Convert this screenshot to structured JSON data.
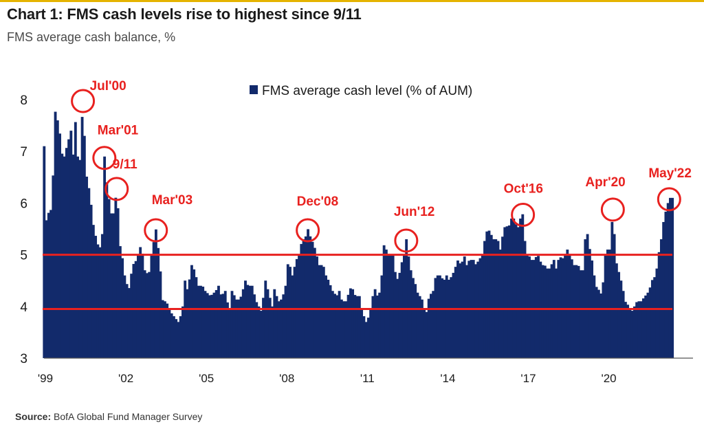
{
  "title": "Chart 1: FMS cash levels rise to highest since 9/11",
  "subtitle": "FMS average cash balance, %",
  "source_label": "Source:",
  "source_text": "BofA Global Fund Manager Survey",
  "colors": {
    "bar": "#122a6b",
    "annotation": "#e8211f",
    "accent": "#e5b300"
  },
  "chart_data": {
    "type": "bar",
    "legend": {
      "label": "FMS average cash level (% of AUM)",
      "position": "top-center"
    },
    "y": {
      "min": 3,
      "max": 8.3,
      "ticks": [
        3,
        4,
        5,
        6,
        7,
        8
      ]
    },
    "x": {
      "start_year": 1999,
      "end_year": 2022.42,
      "tick_years": [
        1999,
        2002,
        2005,
        2008,
        2011,
        2014,
        2017,
        2020
      ],
      "tick_labels": [
        "'99",
        "'02",
        "'05",
        "'08",
        "'11",
        "'14",
        "'17",
        "'20"
      ]
    },
    "reference_lines": [
      5.0,
      3.95
    ],
    "anchors": [
      [
        1999.0,
        7.1
      ],
      [
        1999.05,
        5.6
      ],
      [
        1999.15,
        5.8
      ],
      [
        1999.3,
        5.9
      ],
      [
        1999.4,
        7.8
      ],
      [
        1999.55,
        7.5
      ],
      [
        1999.7,
        6.8
      ],
      [
        1999.85,
        7.1
      ],
      [
        2000.0,
        7.4
      ],
      [
        2000.08,
        6.9
      ],
      [
        2000.15,
        7.7
      ],
      [
        2000.3,
        6.5
      ],
      [
        2000.45,
        8.0
      ],
      [
        2000.55,
        6.6
      ],
      [
        2000.7,
        6.2
      ],
      [
        2000.85,
        5.5
      ],
      [
        2001.0,
        5.2
      ],
      [
        2001.15,
        5.1
      ],
      [
        2001.25,
        6.9
      ],
      [
        2001.35,
        6.3
      ],
      [
        2001.5,
        5.8
      ],
      [
        2001.6,
        5.8
      ],
      [
        2001.71,
        6.3
      ],
      [
        2001.82,
        5.2
      ],
      [
        2001.9,
        5.0
      ],
      [
        2002.0,
        4.6
      ],
      [
        2002.15,
        4.3
      ],
      [
        2002.3,
        4.8
      ],
      [
        2002.45,
        4.9
      ],
      [
        2002.55,
        5.1
      ],
      [
        2002.62,
        5.2
      ],
      [
        2002.75,
        4.7
      ],
      [
        2002.9,
        4.6
      ],
      [
        2003.0,
        5.0
      ],
      [
        2003.17,
        5.5
      ],
      [
        2003.3,
        4.9
      ],
      [
        2003.42,
        4.1
      ],
      [
        2003.55,
        4.1
      ],
      [
        2003.7,
        3.9
      ],
      [
        2003.85,
        3.8
      ],
      [
        2004.0,
        3.7
      ],
      [
        2004.15,
        3.9
      ],
      [
        2004.25,
        4.5
      ],
      [
        2004.35,
        4.3
      ],
      [
        2004.5,
        4.8
      ],
      [
        2004.6,
        4.7
      ],
      [
        2004.75,
        4.4
      ],
      [
        2004.9,
        4.4
      ],
      [
        2005.0,
        4.3
      ],
      [
        2005.2,
        4.2
      ],
      [
        2005.4,
        4.3
      ],
      [
        2005.5,
        4.4
      ],
      [
        2005.6,
        4.2
      ],
      [
        2005.75,
        4.3
      ],
      [
        2005.9,
        3.9
      ],
      [
        2006.0,
        4.3
      ],
      [
        2006.2,
        4.1
      ],
      [
        2006.35,
        4.2
      ],
      [
        2006.5,
        4.5
      ],
      [
        2006.6,
        4.4
      ],
      [
        2006.75,
        4.4
      ],
      [
        2006.9,
        4.1
      ],
      [
        2007.0,
        4.0
      ],
      [
        2007.1,
        3.9
      ],
      [
        2007.25,
        4.5
      ],
      [
        2007.4,
        4.2
      ],
      [
        2007.5,
        4.0
      ],
      [
        2007.6,
        4.4
      ],
      [
        2007.7,
        4.1
      ],
      [
        2007.8,
        4.1
      ],
      [
        2007.9,
        4.2
      ],
      [
        2008.0,
        4.4
      ],
      [
        2008.1,
        4.9
      ],
      [
        2008.25,
        4.6
      ],
      [
        2008.4,
        4.9
      ],
      [
        2008.5,
        5.0
      ],
      [
        2008.62,
        5.3
      ],
      [
        2008.72,
        5.3
      ],
      [
        2008.83,
        5.5
      ],
      [
        2008.95,
        5.3
      ],
      [
        2009.05,
        5.2
      ],
      [
        2009.15,
        5.0
      ],
      [
        2009.25,
        4.8
      ],
      [
        2009.4,
        4.8
      ],
      [
        2009.5,
        4.6
      ],
      [
        2009.6,
        4.5
      ],
      [
        2009.75,
        4.3
      ],
      [
        2009.9,
        4.2
      ],
      [
        2010.0,
        4.3
      ],
      [
        2010.1,
        4.1
      ],
      [
        2010.25,
        4.1
      ],
      [
        2010.45,
        4.4
      ],
      [
        2010.6,
        4.2
      ],
      [
        2010.75,
        4.2
      ],
      [
        2010.85,
        3.9
      ],
      [
        2011.0,
        3.7
      ],
      [
        2011.1,
        3.8
      ],
      [
        2011.2,
        4.0
      ],
      [
        2011.3,
        4.4
      ],
      [
        2011.4,
        4.2
      ],
      [
        2011.55,
        4.3
      ],
      [
        2011.65,
        5.2
      ],
      [
        2011.75,
        5.1
      ],
      [
        2011.85,
        5.0
      ],
      [
        2012.0,
        5.0
      ],
      [
        2012.1,
        4.6
      ],
      [
        2012.2,
        4.5
      ],
      [
        2012.3,
        4.8
      ],
      [
        2012.42,
        5.0
      ],
      [
        2012.5,
        5.3
      ],
      [
        2012.6,
        4.9
      ],
      [
        2012.7,
        4.6
      ],
      [
        2012.8,
        4.5
      ],
      [
        2012.95,
        4.2
      ],
      [
        2013.05,
        4.2
      ],
      [
        2013.15,
        4.0
      ],
      [
        2013.22,
        3.8
      ],
      [
        2013.35,
        4.2
      ],
      [
        2013.5,
        4.3
      ],
      [
        2013.6,
        4.6
      ],
      [
        2013.75,
        4.6
      ],
      [
        2013.9,
        4.5
      ],
      [
        2014.0,
        4.6
      ],
      [
        2014.1,
        4.5
      ],
      [
        2014.2,
        4.6
      ],
      [
        2014.3,
        4.7
      ],
      [
        2014.4,
        4.9
      ],
      [
        2014.55,
        4.8
      ],
      [
        2014.65,
        5.0
      ],
      [
        2014.75,
        4.8
      ],
      [
        2014.85,
        4.9
      ],
      [
        2015.0,
        4.9
      ],
      [
        2015.1,
        4.8
      ],
      [
        2015.2,
        4.9
      ],
      [
        2015.35,
        5.0
      ],
      [
        2015.45,
        5.4
      ],
      [
        2015.55,
        5.5
      ],
      [
        2015.65,
        5.4
      ],
      [
        2015.75,
        5.3
      ],
      [
        2015.9,
        5.3
      ],
      [
        2016.0,
        5.1
      ],
      [
        2016.1,
        5.4
      ],
      [
        2016.2,
        5.6
      ],
      [
        2016.3,
        5.5
      ],
      [
        2016.4,
        5.7
      ],
      [
        2016.5,
        5.7
      ],
      [
        2016.65,
        5.5
      ],
      [
        2016.75,
        5.7
      ],
      [
        2016.85,
        5.8
      ],
      [
        2016.95,
        5.0
      ],
      [
        2017.05,
        5.0
      ],
      [
        2017.15,
        4.9
      ],
      [
        2017.25,
        4.9
      ],
      [
        2017.4,
        5.0
      ],
      [
        2017.55,
        4.8
      ],
      [
        2017.65,
        4.8
      ],
      [
        2017.8,
        4.7
      ],
      [
        2017.9,
        4.8
      ],
      [
        2018.0,
        4.9
      ],
      [
        2018.1,
        4.7
      ],
      [
        2018.2,
        5.0
      ],
      [
        2018.3,
        4.9
      ],
      [
        2018.4,
        5.0
      ],
      [
        2018.5,
        5.1
      ],
      [
        2018.6,
        5.0
      ],
      [
        2018.75,
        4.8
      ],
      [
        2018.9,
        4.8
      ],
      [
        2019.0,
        4.7
      ],
      [
        2019.1,
        4.7
      ],
      [
        2019.2,
        5.6
      ],
      [
        2019.3,
        5.2
      ],
      [
        2019.45,
        4.8
      ],
      [
        2019.55,
        4.4
      ],
      [
        2019.7,
        4.3
      ],
      [
        2019.8,
        4.2
      ],
      [
        2019.9,
        5.0
      ],
      [
        2020.0,
        5.1
      ],
      [
        2020.1,
        5.1
      ],
      [
        2020.2,
        5.9
      ],
      [
        2020.3,
        4.9
      ],
      [
        2020.4,
        4.7
      ],
      [
        2020.55,
        4.4
      ],
      [
        2020.65,
        4.1
      ],
      [
        2020.8,
        4.0
      ],
      [
        2020.9,
        3.9
      ],
      [
        2021.0,
        4.0
      ],
      [
        2021.1,
        4.1
      ],
      [
        2021.25,
        4.1
      ],
      [
        2021.4,
        4.2
      ],
      [
        2021.55,
        4.3
      ],
      [
        2021.65,
        4.5
      ],
      [
        2021.8,
        4.6
      ],
      [
        2021.9,
        5.0
      ],
      [
        2022.0,
        5.3
      ],
      [
        2022.1,
        5.7
      ],
      [
        2022.2,
        5.9
      ],
      [
        2022.3,
        6.1
      ],
      [
        2022.4,
        6.1
      ]
    ],
    "annotations": [
      {
        "label": "Jul'00",
        "x": 2000.45,
        "y": 8.0
      },
      {
        "label": "Mar'01",
        "x": 2001.25,
        "y": 6.9
      },
      {
        "label": "9/11",
        "x": 2001.71,
        "y": 6.3
      },
      {
        "label": "Mar'03",
        "x": 2003.17,
        "y": 5.5
      },
      {
        "label": "Dec'08",
        "x": 2008.83,
        "y": 5.5
      },
      {
        "label": "Jun'12",
        "x": 2012.5,
        "y": 5.3
      },
      {
        "label": "Oct'16",
        "x": 2016.85,
        "y": 5.8
      },
      {
        "label": "Apr'20",
        "x": 2020.2,
        "y": 5.9
      },
      {
        "label": "May'22",
        "x": 2022.3,
        "y": 6.1
      }
    ]
  }
}
